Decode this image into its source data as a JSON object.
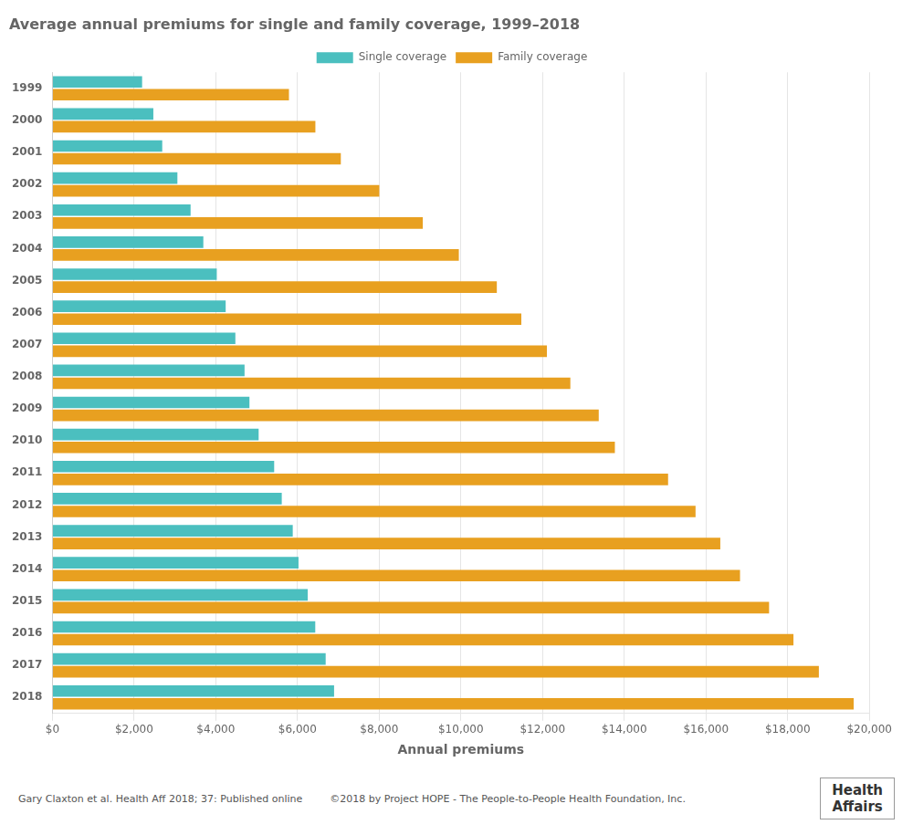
{
  "chart_data": {
    "type": "bar",
    "orientation": "horizontal",
    "title": "Average annual premiums for single and family coverage, 1999–2018",
    "xlabel": "Annual premiums",
    "categories": [
      "1999",
      "2000",
      "2001",
      "2002",
      "2003",
      "2004",
      "2005",
      "2006",
      "2007",
      "2008",
      "2009",
      "2010",
      "2011",
      "2012",
      "2013",
      "2014",
      "2015",
      "2016",
      "2017",
      "2018"
    ],
    "series": [
      {
        "name": "Single coverage",
        "color": "#4bbfbf",
        "values": [
          2196,
          2471,
          2689,
          3060,
          3383,
          3695,
          4024,
          4242,
          4479,
          4704,
          4824,
          5049,
          5429,
          5615,
          5884,
          6025,
          6251,
          6435,
          6690,
          6896
        ]
      },
      {
        "name": "Family coverage",
        "color": "#e8a020",
        "values": [
          5791,
          6438,
          7061,
          8003,
          9068,
          9950,
          10880,
          11480,
          12106,
          12680,
          13375,
          13770,
          15073,
          15745,
          16351,
          16834,
          17545,
          18142,
          18764,
          19616
        ]
      }
    ],
    "xlim": [
      0,
      20000
    ],
    "xticks": [
      {
        "value": 0,
        "label": "$0"
      },
      {
        "value": 2000,
        "label": "$2,000"
      },
      {
        "value": 4000,
        "label": "$4,000"
      },
      {
        "value": 6000,
        "label": "$6,000"
      },
      {
        "value": 8000,
        "label": "$8,000"
      },
      {
        "value": 10000,
        "label": "$10,000"
      },
      {
        "value": 12000,
        "label": "$12,000"
      },
      {
        "value": 14000,
        "label": "$14,000"
      },
      {
        "value": 16000,
        "label": "$16,000"
      },
      {
        "value": 18000,
        "label": "$18,000"
      },
      {
        "value": 20000,
        "label": "$20,000"
      }
    ],
    "grid": true,
    "legend": "top",
    "annotations": [
      "Gary Claxton et al. Health Aff 2018; 37: Published online",
      "©2018 by Project HOPE - The People-to-People Health Foundation, Inc.",
      "Health",
      "Affairs"
    ]
  }
}
